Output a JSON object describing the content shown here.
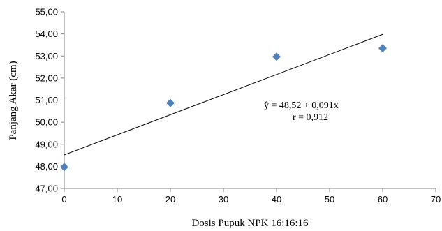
{
  "chart_data": {
    "type": "scatter",
    "title": "",
    "xlabel": "Dosis  Pupuk NPK 16:16:16",
    "ylabel": "Panjang  Akar (cm)",
    "xlim": [
      0,
      70
    ],
    "ylim": [
      47,
      55
    ],
    "x_ticks": [
      "0",
      "10",
      "20",
      "30",
      "40",
      "50",
      "60",
      "70"
    ],
    "y_ticks": [
      "47,00",
      "48,00",
      "49,00",
      "50,00",
      "51,00",
      "52,00",
      "53,00",
      "54,00",
      "55,00"
    ],
    "grid": false,
    "legend": "none",
    "marker_color": "#4f81bd",
    "line_color": "#000000",
    "points": [
      {
        "x": 0,
        "y": 47.97
      },
      {
        "x": 20,
        "y": 50.87
      },
      {
        "x": 40,
        "y": 52.97
      },
      {
        "x": 60,
        "y": 53.35
      }
    ],
    "trendline": {
      "intercept": 48.52,
      "slope": 0.091,
      "x_range": [
        0,
        60
      ]
    },
    "annotations": {
      "equation": "ŷ  = 48,52 +  0,091x",
      "r": "r  = 0,912"
    }
  }
}
